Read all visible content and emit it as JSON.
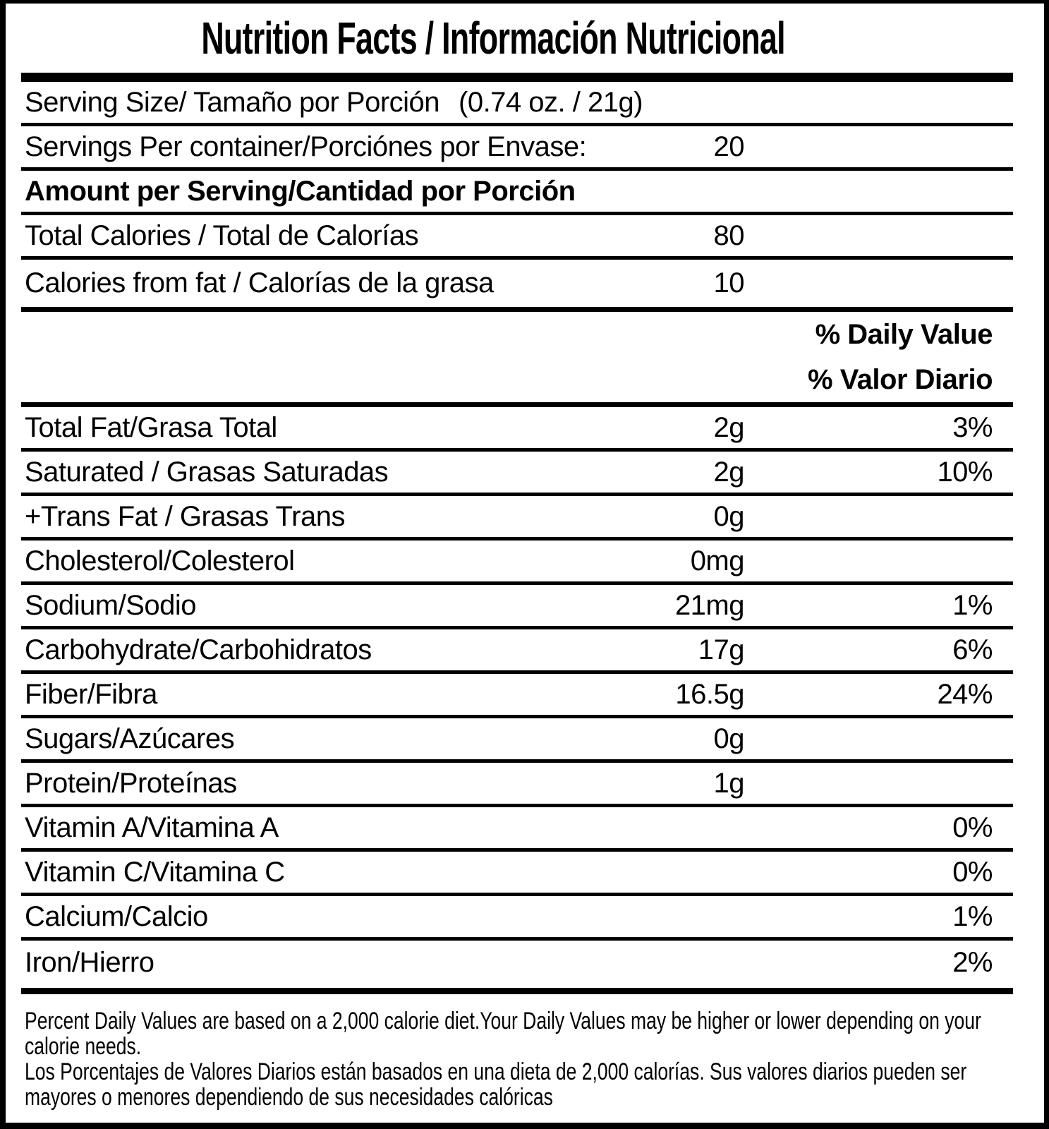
{
  "title": "Nutrition Facts / Información Nutricional",
  "serving": {
    "label": "Serving Size/ Tamaño por Porción",
    "value": "(0.74 oz. / 21g)"
  },
  "servings_per_container": {
    "label": "Servings Per container/Porciónes por Envase:",
    "value": "20"
  },
  "amount_header": "Amount per Serving/Cantidad por Porción",
  "calories_rows": [
    {
      "label": "Total Calories / Total de Calorías",
      "amount": "80"
    },
    {
      "label": "Calories from fat / Calorías de la grasa",
      "amount": "10"
    }
  ],
  "daily_value_header": {
    "en": "% Daily Value",
    "es": "% Valor Diario"
  },
  "nutrients": [
    {
      "label": "Total Fat/Grasa Total",
      "amount": "2g",
      "dv": "3%"
    },
    {
      "label": "Saturated / Grasas Saturadas",
      "amount": "2g",
      "dv": "10%"
    },
    {
      "label": "+Trans Fat / Grasas Trans",
      "amount": "0g",
      "dv": ""
    },
    {
      "label": "Cholesterol/Colesterol",
      "amount": "0mg",
      "dv": ""
    },
    {
      "label": "Sodium/Sodio",
      "amount": "21mg",
      "dv": "1%"
    },
    {
      "label": "Carbohydrate/Carbohidratos",
      "amount": "17g",
      "dv": "6%"
    },
    {
      "label": "Fiber/Fibra",
      "amount": "16.5g",
      "dv": "24%"
    },
    {
      "label": "Sugars/Azúcares",
      "amount": "0g",
      "dv": ""
    },
    {
      "label": "Protein/Proteínas",
      "amount": "1g",
      "dv": ""
    },
    {
      "label": "Vitamin A/Vitamina A",
      "amount": "",
      "dv": "0%"
    },
    {
      "label": "Vitamin C/Vitamina C",
      "amount": "",
      "dv": "0%"
    },
    {
      "label": "Calcium/Calcio",
      "amount": "",
      "dv": "1%"
    },
    {
      "label": "Iron/Hierro",
      "amount": "",
      "dv": "2%"
    }
  ],
  "footnote": {
    "en_lines": [
      "Percent Daily Values are based on a 2,000 calorie diet.Your Daily Values may be higher or lower depending on your",
      "calorie needs."
    ],
    "es_lines": [
      "Los Porcentajes de Valores Diarios están basados en una dieta de 2,000 calorías. Sus valores diarios pueden ser",
      "mayores o menores dependiendo de sus necesidades calóricas"
    ]
  },
  "colors": {
    "text": "#000000",
    "background": "#ffffff"
  }
}
